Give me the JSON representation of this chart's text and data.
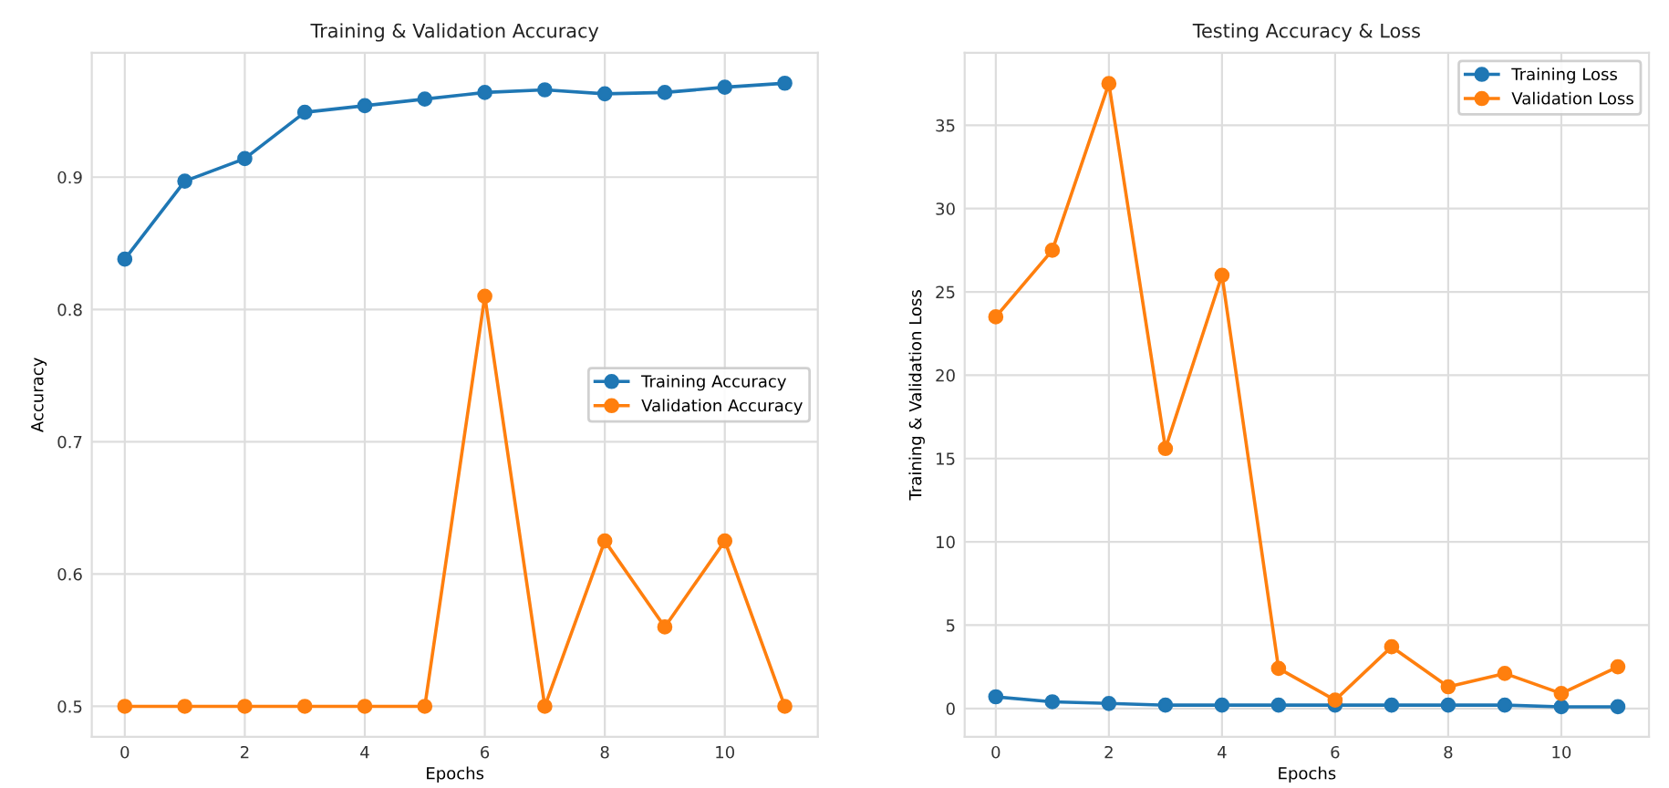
{
  "chart_data": [
    {
      "type": "line",
      "title": "Training & Validation Accuracy",
      "xlabel": "Epochs",
      "ylabel": "Accuracy",
      "x": [
        0,
        1,
        2,
        3,
        4,
        5,
        6,
        7,
        8,
        9,
        10,
        11
      ],
      "series": [
        {
          "name": "Training Accuracy",
          "color": "#1f77b4",
          "values": [
            0.838,
            0.897,
            0.914,
            0.949,
            0.954,
            0.959,
            0.964,
            0.966,
            0.963,
            0.964,
            0.968,
            0.971
          ]
        },
        {
          "name": "Validation Accuracy",
          "color": "#ff7f0e",
          "values": [
            0.5,
            0.5,
            0.5,
            0.5,
            0.5,
            0.5,
            0.81,
            0.5,
            0.625,
            0.56,
            0.625,
            0.5
          ]
        }
      ],
      "xlim": [
        -0.55,
        11.55
      ],
      "xticks": [
        0,
        2,
        4,
        6,
        8,
        10
      ],
      "ylim": [
        0.477,
        0.994
      ],
      "yticks": [
        0.5,
        0.6,
        0.7,
        0.8,
        0.9
      ],
      "grid": true,
      "legend": "right",
      "marker": "circle",
      "line_style": "solid"
    },
    {
      "type": "line",
      "title": "Testing Accuracy & Loss",
      "xlabel": "Epochs",
      "ylabel": "Training & Validation Loss",
      "x": [
        0,
        1,
        2,
        3,
        4,
        5,
        6,
        7,
        8,
        9,
        10,
        11
      ],
      "series": [
        {
          "name": "Training Loss",
          "color": "#1f77b4",
          "values": [
            0.7,
            0.4,
            0.3,
            0.2,
            0.2,
            0.2,
            0.2,
            0.2,
            0.2,
            0.2,
            0.1,
            0.1
          ]
        },
        {
          "name": "Validation Loss",
          "color": "#ff7f0e",
          "values": [
            23.5,
            27.5,
            37.5,
            15.6,
            26,
            2.4,
            0.5,
            3.7,
            1.3,
            2.1,
            0.9,
            2.5
          ]
        }
      ],
      "xlim": [
        -0.55,
        11.55
      ],
      "xticks": [
        0,
        2,
        4,
        6,
        8,
        10
      ],
      "ylim": [
        -1.7,
        39.35
      ],
      "yticks": [
        0,
        5,
        10,
        15,
        20,
        25,
        30,
        35
      ],
      "grid": true,
      "legend": "top right",
      "marker": "circle",
      "line_style": "solid"
    }
  ]
}
